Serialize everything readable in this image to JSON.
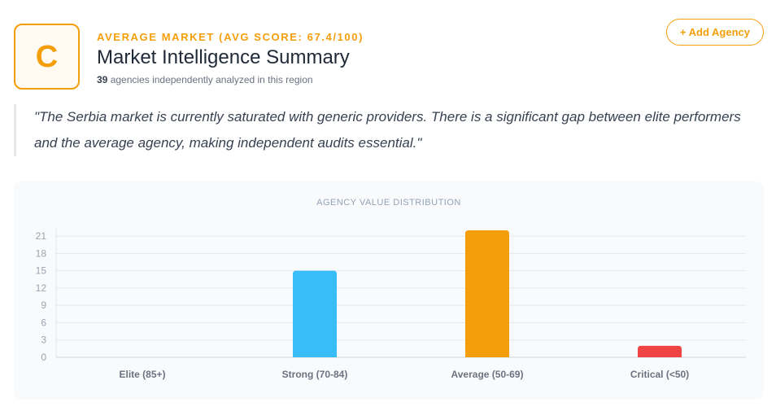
{
  "header": {
    "grade": "C",
    "eyebrow": "AVERAGE MARKET (AVG SCORE: 67.4/100)",
    "title": "Market Intelligence Summary",
    "agency_count": "39",
    "subtitle_rest": " agencies independently analyzed in this region",
    "add_button": "+ Add Agency"
  },
  "quote": "\"The Serbia market is currently saturated with generic providers. There is a significant gap between elite performers and the average agency, making independent audits essential.\"",
  "colors": {
    "accent": "#f59e0b",
    "strong": "#38bdf8",
    "average": "#f59e0b",
    "critical": "#ef4444"
  },
  "chart_data": {
    "type": "bar",
    "title": "AGENCY VALUE DISTRIBUTION",
    "categories": [
      "Elite (85+)",
      "Strong (70-84)",
      "Average (50-69)",
      "Critical (<50)"
    ],
    "values": [
      0,
      15,
      22,
      2
    ],
    "bar_colors": [
      "#94a3b8",
      "#38bdf8",
      "#f59e0b",
      "#ef4444"
    ],
    "yticks": [
      0,
      3,
      6,
      9,
      12,
      15,
      18,
      21
    ],
    "ylim": [
      0,
      22
    ],
    "xlabel": "",
    "ylabel": "",
    "grid": true
  }
}
